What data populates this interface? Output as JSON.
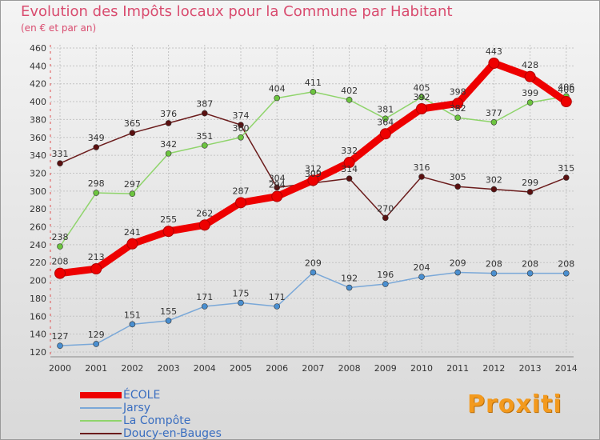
{
  "title": "Evolution des Impôts locaux pour la Commune par Habitant",
  "subtitle": "(en € et par an)",
  "logo_text": "Proxiti",
  "chart_data": {
    "type": "line",
    "categories": [
      "2000",
      "2001",
      "2002",
      "2003",
      "2004",
      "2005",
      "2006",
      "2007",
      "2008",
      "2009",
      "2010",
      "2011",
      "2012",
      "2013",
      "2014"
    ],
    "y_ticks": [
      "120",
      "140",
      "160",
      "180",
      "200",
      "220",
      "240",
      "260",
      "280",
      "300",
      "320",
      "340",
      "360",
      "380",
      "400",
      "420",
      "440",
      "460"
    ],
    "ylim": [
      120,
      460
    ],
    "grid": true,
    "legend_position": "bottom-left",
    "series": [
      {
        "name": "Doucy-en-Bauges",
        "color": "#6b1c1c",
        "marker": "#5a1010",
        "values": [
          331,
          349,
          365,
          376,
          387,
          374,
          304,
          309,
          314,
          270,
          316,
          305,
          302,
          299,
          315
        ]
      },
      {
        "name": "La Compôte",
        "color": "#8fd46b",
        "marker": "#6cc43f",
        "values": [
          238,
          298,
          297,
          342,
          351,
          360,
          404,
          411,
          402,
          381,
          405,
          382,
          377,
          399,
          406
        ]
      },
      {
        "name": "Jarsy",
        "color": "#7aa8d8",
        "marker": "#4a8fd0",
        "values": [
          127,
          129,
          151,
          155,
          171,
          175,
          171,
          209,
          192,
          196,
          204,
          209,
          208,
          208,
          208
        ]
      },
      {
        "name": "ÉCOLE",
        "color": "#ee0000",
        "marker": "#ee0000",
        "values": [
          208,
          213,
          241,
          255,
          262,
          287,
          294,
          312,
          332,
          364,
          392,
          398,
          443,
          428,
          400
        ]
      }
    ],
    "legend": [
      {
        "label": "ÉCOLE",
        "color": "#ee0000",
        "thick": true
      },
      {
        "label": "Jarsy",
        "color": "#7aa8d8",
        "thick": false
      },
      {
        "label": "La Compôte",
        "color": "#8fd46b",
        "thick": false
      },
      {
        "label": "Doucy-en-Bauges",
        "color": "#6b1c1c",
        "thick": false
      }
    ]
  }
}
